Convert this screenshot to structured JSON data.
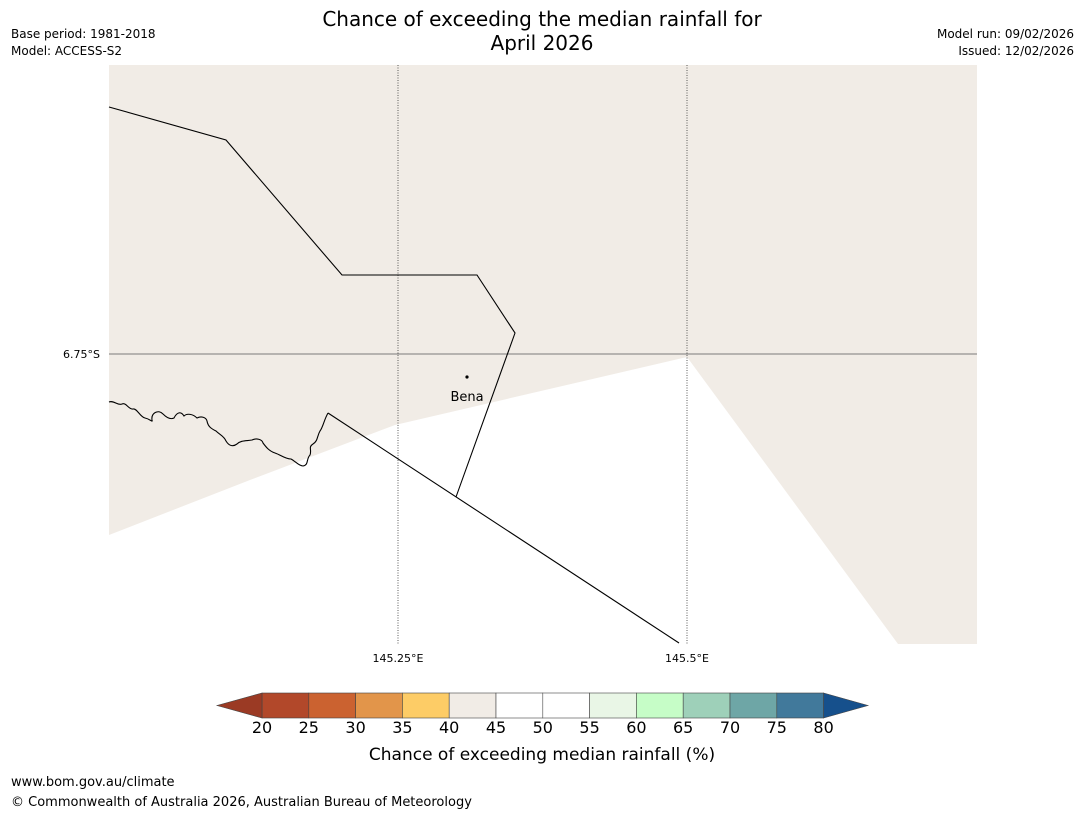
{
  "title_line1": "Chance of exceeding the median rainfall for",
  "title_line2": "April 2026",
  "meta_left": {
    "base_period": "Base period: 1981-2018",
    "model": "Model: ACCESS-S2"
  },
  "meta_right": {
    "model_run": "Model run: 09/02/2026",
    "issued": "Issued: 12/02/2026"
  },
  "map": {
    "lat_label": "6.75°S",
    "lon_labels": [
      "145.25°E",
      "145.5°E"
    ],
    "place": "Bena",
    "colors": {
      "land": "#f1ece6",
      "water": "#ffffff",
      "grid": "#555555",
      "border": "#000000"
    }
  },
  "colorbar": {
    "ticks": [
      "20",
      "25",
      "30",
      "35",
      "40",
      "45",
      "50",
      "55",
      "60",
      "65",
      "70",
      "75",
      "80"
    ],
    "colors": [
      "#b2482a",
      "#cb6230",
      "#e2954a",
      "#fdcc66",
      "#f1ece6",
      "#ffffff",
      "#ffffff",
      "#e9f6e6",
      "#c6fdc7",
      "#9ed0b9",
      "#6ea6a6",
      "#41799b"
    ],
    "low_extend_color": "#9b3a24",
    "high_extend_color": "#16508c",
    "title": "Chance of exceeding median rainfall (%)"
  },
  "footer": {
    "url": "www.bom.gov.au/climate",
    "copyright": "© Commonwealth of Australia 2026, Australian Bureau of Meteorology"
  }
}
